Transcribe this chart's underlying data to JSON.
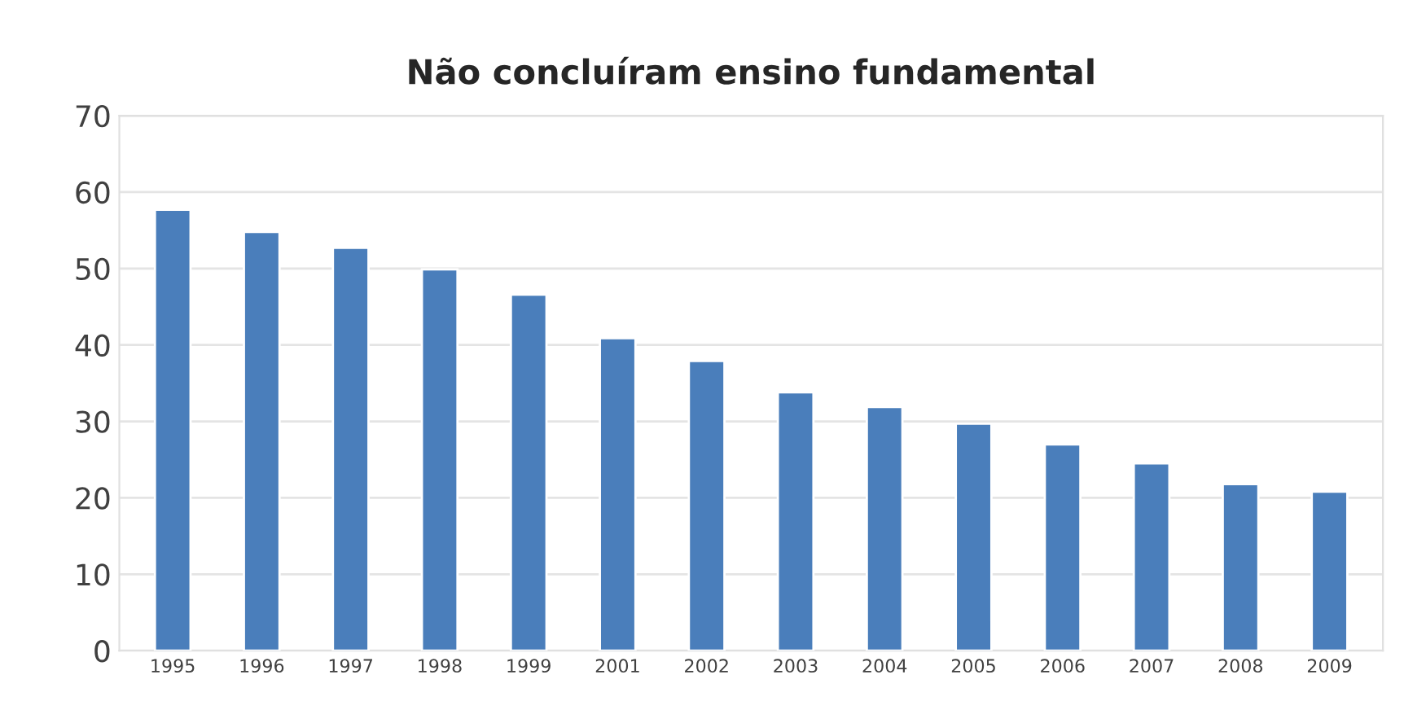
{
  "chart_data": {
    "type": "bar",
    "title": "Não concluíram ensino fundamental",
    "categories": [
      "1995",
      "1996",
      "1997",
      "1998",
      "1999",
      "2001",
      "2002",
      "2003",
      "2004",
      "2005",
      "2006",
      "2007",
      "2008",
      "2009"
    ],
    "values": [
      57.7,
      54.8,
      52.7,
      49.9,
      46.6,
      40.9,
      37.9,
      33.8,
      31.9,
      29.7,
      27.0,
      24.5,
      21.8,
      20.8
    ],
    "color": "#4a7ebb",
    "ylim": [
      0,
      70
    ],
    "yticks": [
      0,
      10,
      20,
      30,
      40,
      50,
      60,
      70
    ],
    "grid": "y",
    "legend": false
  }
}
